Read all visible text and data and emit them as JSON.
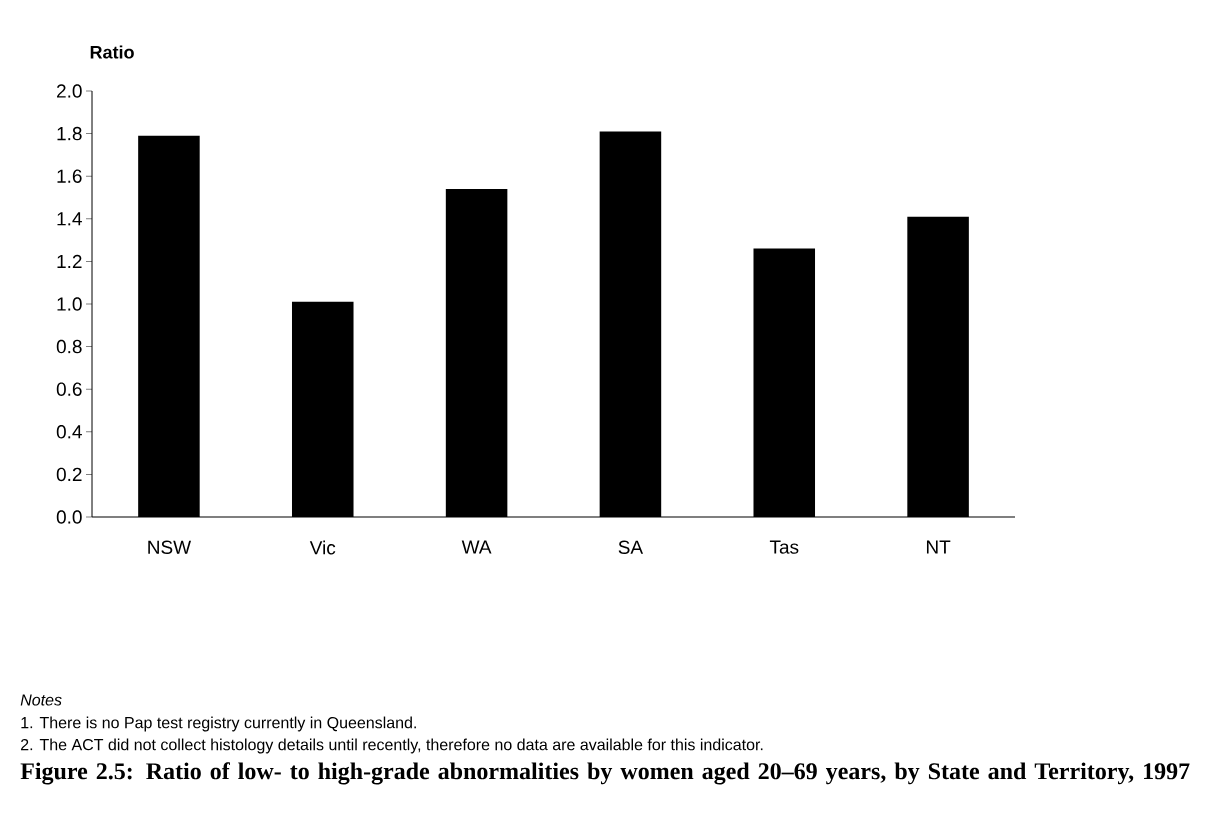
{
  "chart_data": {
    "type": "bar",
    "title": "Figure 2.5: Ratio of low- to high-grade abnormalities by women aged 20–69 years, by State and Territory, 1997",
    "ylabel": "Ratio",
    "categories": [
      "NSW",
      "Vic",
      "WA",
      "SA",
      "Tas",
      "NT"
    ],
    "values": [
      1.79,
      1.01,
      1.54,
      1.81,
      1.26,
      1.41
    ],
    "color": "#000000",
    "ylim": [
      0,
      2.0
    ],
    "yticks": [
      {
        "value": 0,
        "label": "0.0"
      },
      {
        "value": 0.2,
        "label": "0.2"
      },
      {
        "value": 0.4,
        "label": "0.4"
      },
      {
        "value": 0.6,
        "label": "0.6"
      },
      {
        "value": 0.8,
        "label": "0.8"
      },
      {
        "value": 1.0,
        "label": "1.0"
      },
      {
        "value": 1.2,
        "label": "1.2"
      },
      {
        "value": 1.4,
        "label": "1.4"
      },
      {
        "value": 1.6,
        "label": "1.6"
      },
      {
        "value": 1.8,
        "label": "1.8"
      },
      {
        "value": 2.0,
        "label": "2.0"
      }
    ],
    "annotations": [
      "Notes",
      "1.      There is no Pap test registry currently in Queensland.",
      "2.      The ACT did not collect histology details until recently, therefore no data are available for this indicator."
    ]
  }
}
